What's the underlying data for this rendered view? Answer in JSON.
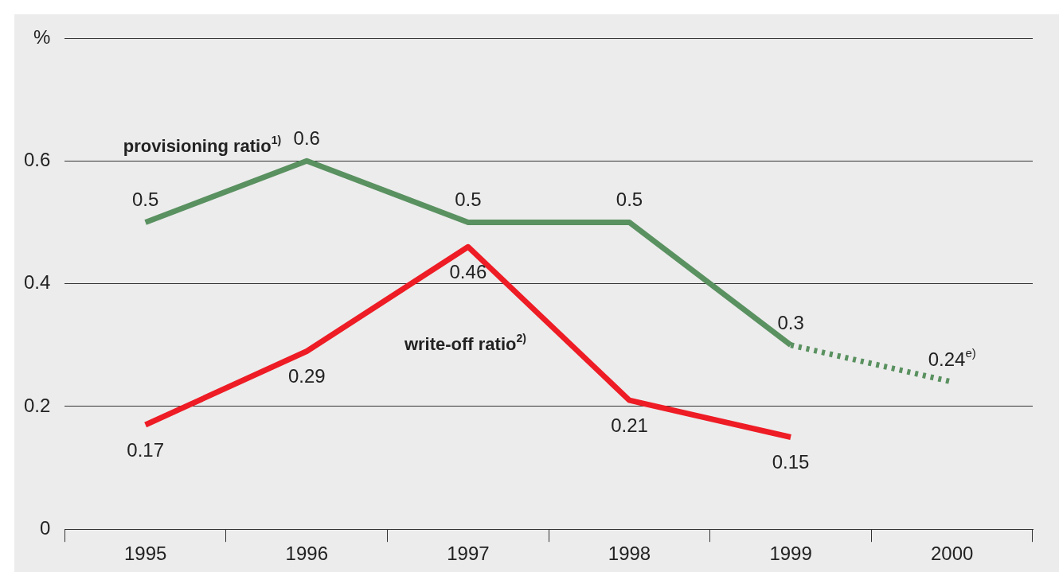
{
  "chart_data": {
    "type": "line",
    "categories": [
      "1995",
      "1996",
      "1997",
      "1998",
      "1999",
      "2000"
    ],
    "series": [
      {
        "name": "provisioning ratio$^{1)}$",
        "color": "#5a9160",
        "values": [
          0.5,
          0.6,
          0.5,
          0.5,
          0.3,
          null
        ],
        "value_labels": [
          "0.5",
          "0.6",
          "0.5",
          "0.5",
          "0.3",
          null
        ]
      },
      {
        "color": "#5a9160",
        "line_style": "dotted",
        "values": [
          null,
          null,
          null,
          null,
          0.3,
          0.24
        ],
        "value_labels": [
          null,
          null,
          null,
          null,
          null,
          "0.24$^{e)}$"
        ]
      },
      {
        "name": "write-off ratio$^{2)}$",
        "color": "#ee1c25",
        "values": [
          0.17,
          0.29,
          0.46,
          0.21,
          0.15,
          null
        ],
        "value_labels": [
          "0.17",
          "0.29",
          "0.46",
          "0.21",
          "0.15",
          null
        ]
      }
    ],
    "ylim": [
      0,
      0.8
    ],
    "yticks": [
      0,
      0.2,
      0.4,
      0.6,
      {
        "value": 0.8,
        "label": "%"
      }
    ],
    "grid": "y",
    "legend": false,
    "marker": "none",
    "line_style": "solid"
  }
}
